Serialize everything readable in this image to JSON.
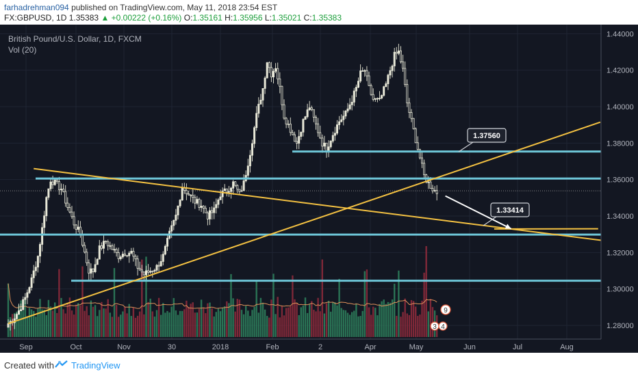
{
  "publish": {
    "user": "farhadrehman094",
    "text": " published on TradingView.com, May 11, 2018 23:54 EST"
  },
  "header": {
    "symbol": "FX:GBPUSD, 1D",
    "price": "1.35383",
    "change": "▲ +0.00222 (+0.16%)",
    "o_label": "O:",
    "o": "1.35161",
    "h_label": "H:",
    "h": "1.35956",
    "l_label": "L:",
    "l": "1.35021",
    "c_label": "C:",
    "c": "1.35383"
  },
  "legend": {
    "title": "British Pound/U.S. Dollar, 1D, FXCM",
    "vol": "Vol (20)"
  },
  "footer": {
    "created": "Created with",
    "brand": "TradingView"
  },
  "colors": {
    "background": "#131722",
    "up_candle": "#e8e8d8",
    "down_candle": "#e8e8d8",
    "trendline": "#f5c242",
    "level": "#6ec6d8",
    "arrow": "#ffffff",
    "vol_up": "#2e7d5b",
    "vol_down": "#8b2a3b",
    "vol_ma": "#e0915a"
  },
  "chart_data": {
    "type": "candlestick",
    "symbol": "GBPUSD",
    "interval": "1D",
    "x_ticks": [
      "Sep",
      "Oct",
      "Nov",
      "30",
      "2018",
      "Feb",
      "2",
      "Apr",
      "May",
      "Jun",
      "Jul",
      "Aug"
    ],
    "y_ticks": [
      "1.44000",
      "1.42000",
      "1.40000",
      "1.38000",
      "1.36000",
      "1.34000",
      "1.32000",
      "1.30000",
      "1.28000"
    ],
    "ylim": [
      1.2725,
      1.445
    ],
    "levels": [
      {
        "label": "1.37538",
        "value": 1.37538
      },
      {
        "label": "1.36060",
        "value": 1.3606
      },
      {
        "label": "1.32981",
        "value": 1.32981
      },
      {
        "label": "1.30453",
        "value": 1.30453
      }
    ],
    "current_price": {
      "label": "1.35383",
      "value": 1.35383
    },
    "callouts": [
      {
        "label": "1.37560",
        "value": 1.3756
      },
      {
        "label": "1.33414",
        "value": 1.33414
      }
    ],
    "badges": [
      "9",
      "3",
      "4"
    ],
    "anchors": [
      [
        0,
        1.281
      ],
      [
        2,
        1.283
      ],
      [
        5,
        1.288
      ],
      [
        8,
        1.295
      ],
      [
        11,
        1.305
      ],
      [
        14,
        1.318
      ],
      [
        16,
        1.333
      ],
      [
        18,
        1.35
      ],
      [
        20,
        1.36
      ],
      [
        22,
        1.358
      ],
      [
        25,
        1.355
      ],
      [
        28,
        1.345
      ],
      [
        31,
        1.336
      ],
      [
        34,
        1.33
      ],
      [
        36,
        1.32
      ],
      [
        38,
        1.31
      ],
      [
        40,
        1.31
      ],
      [
        43,
        1.322
      ],
      [
        46,
        1.326
      ],
      [
        49,
        1.322
      ],
      [
        52,
        1.318
      ],
      [
        55,
        1.32
      ],
      [
        58,
        1.32
      ],
      [
        61,
        1.312
      ],
      [
        64,
        1.308
      ],
      [
        67,
        1.31
      ],
      [
        70,
        1.312
      ],
      [
        73,
        1.318
      ],
      [
        76,
        1.33
      ],
      [
        79,
        1.34
      ],
      [
        82,
        1.356
      ],
      [
        85,
        1.352
      ],
      [
        88,
        1.348
      ],
      [
        91,
        1.346
      ],
      [
        94,
        1.34
      ],
      [
        97,
        1.343
      ],
      [
        100,
        1.352
      ],
      [
        103,
        1.354
      ],
      [
        106,
        1.358
      ],
      [
        109,
        1.352
      ],
      [
        111,
        1.358
      ],
      [
        114,
        1.375
      ],
      [
        117,
        1.395
      ],
      [
        120,
        1.41
      ],
      [
        122,
        1.425
      ],
      [
        124,
        1.418
      ],
      [
        126,
        1.422
      ],
      [
        128,
        1.41
      ],
      [
        130,
        1.395
      ],
      [
        132,
        1.39
      ],
      [
        134,
        1.385
      ],
      [
        136,
        1.38
      ],
      [
        139,
        1.392
      ],
      [
        142,
        1.4
      ],
      [
        145,
        1.39
      ],
      [
        148,
        1.38
      ],
      [
        150,
        1.377
      ],
      [
        153,
        1.385
      ],
      [
        156,
        1.392
      ],
      [
        159,
        1.396
      ],
      [
        162,
        1.404
      ],
      [
        164,
        1.41
      ],
      [
        166,
        1.418
      ],
      [
        168,
        1.42
      ],
      [
        170,
        1.41
      ],
      [
        172,
        1.404
      ],
      [
        175,
        1.403
      ],
      [
        178,
        1.412
      ],
      [
        180,
        1.42
      ],
      [
        182,
        1.428
      ],
      [
        184,
        1.43
      ],
      [
        186,
        1.42
      ],
      [
        188,
        1.402
      ],
      [
        190,
        1.392
      ],
      [
        192,
        1.382
      ],
      [
        194,
        1.372
      ],
      [
        196,
        1.362
      ],
      [
        198,
        1.358
      ],
      [
        200,
        1.355
      ],
      [
        202,
        1.353
      ]
    ],
    "volume_scale": [
      0,
      10
    ],
    "annotations": [
      {
        "type": "trendline",
        "from": {
          "x": 0,
          "y": 1.281
        },
        "to": {
          "x": 279,
          "y": 1.3915
        }
      },
      {
        "type": "trendline",
        "from": {
          "x": 12,
          "y": 1.366
        },
        "to": {
          "x": 301,
          "y": 1.3235
        }
      },
      {
        "type": "segment",
        "from": {
          "x": 229,
          "y": 1.3329
        },
        "to": {
          "x": 278,
          "y": 1.333
        }
      },
      {
        "type": "arrow",
        "from": {
          "x": 206,
          "y": 1.351
        },
        "to": {
          "x": 237,
          "y": 1.333
        }
      }
    ]
  }
}
